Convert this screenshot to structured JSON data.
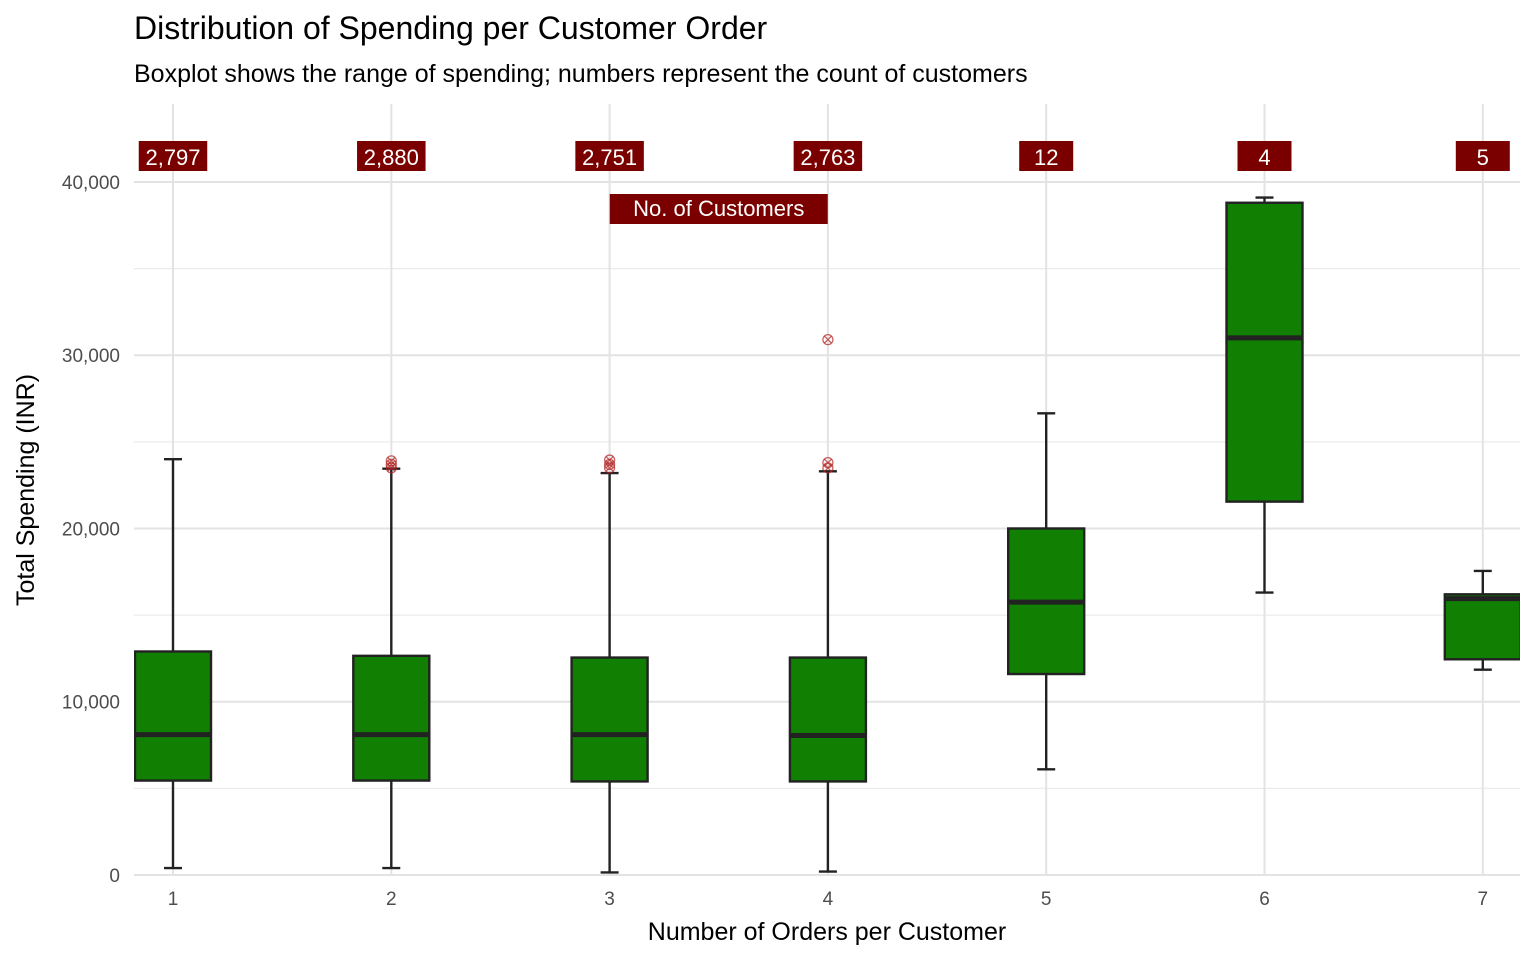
{
  "chart_data": {
    "type": "boxplot",
    "title": "Distribution of Spending per Customer Order",
    "subtitle": "Boxplot shows the range of spending; numbers represent the count of customers",
    "xlabel": "Number of Orders per Customer",
    "ylabel": "Total Spending (INR)",
    "categories": [
      "1",
      "2",
      "3",
      "4",
      "5",
      "6",
      "7"
    ],
    "ylim": [
      0,
      44500
    ],
    "yticks": [
      0,
      10000,
      20000,
      30000,
      40000
    ],
    "ytick_labels": [
      "0",
      "10,000",
      "20,000",
      "30,000",
      "40,000"
    ],
    "grid": true,
    "box_fill": "#107F02",
    "count_label_fill": "#7A0000",
    "outlier_color": "#B22222",
    "boxes": [
      {
        "x": "1",
        "min": 400,
        "q1": 5450,
        "median": 8100,
        "q3": 12900,
        "max": 24000,
        "outliers": []
      },
      {
        "x": "2",
        "min": 400,
        "q1": 5450,
        "median": 8100,
        "q3": 12650,
        "max": 23450,
        "outliers": [
          23500,
          23700,
          23900
        ]
      },
      {
        "x": "3",
        "min": 150,
        "q1": 5400,
        "median": 8100,
        "q3": 12550,
        "max": 23200,
        "outliers": [
          23500,
          23700,
          23950
        ]
      },
      {
        "x": "4",
        "min": 200,
        "q1": 5400,
        "median": 8050,
        "q3": 12550,
        "max": 23300,
        "outliers": [
          23500,
          23800,
          30900
        ]
      },
      {
        "x": "5",
        "min": 6100,
        "q1": 11600,
        "median": 15750,
        "q3": 20000,
        "max": 26650,
        "outliers": []
      },
      {
        "x": "6",
        "min": 16300,
        "q1": 21550,
        "median": 31000,
        "q3": 38800,
        "max": 39100,
        "outliers": []
      },
      {
        "x": "7",
        "min": 11850,
        "q1": 12450,
        "median": 15950,
        "q3": 16200,
        "max": 17550,
        "outliers": []
      }
    ],
    "counts": [
      "2,797",
      "2,880",
      "2,751",
      "2,763",
      "12",
      "4",
      "5"
    ],
    "annotation": "No. of Customers"
  }
}
